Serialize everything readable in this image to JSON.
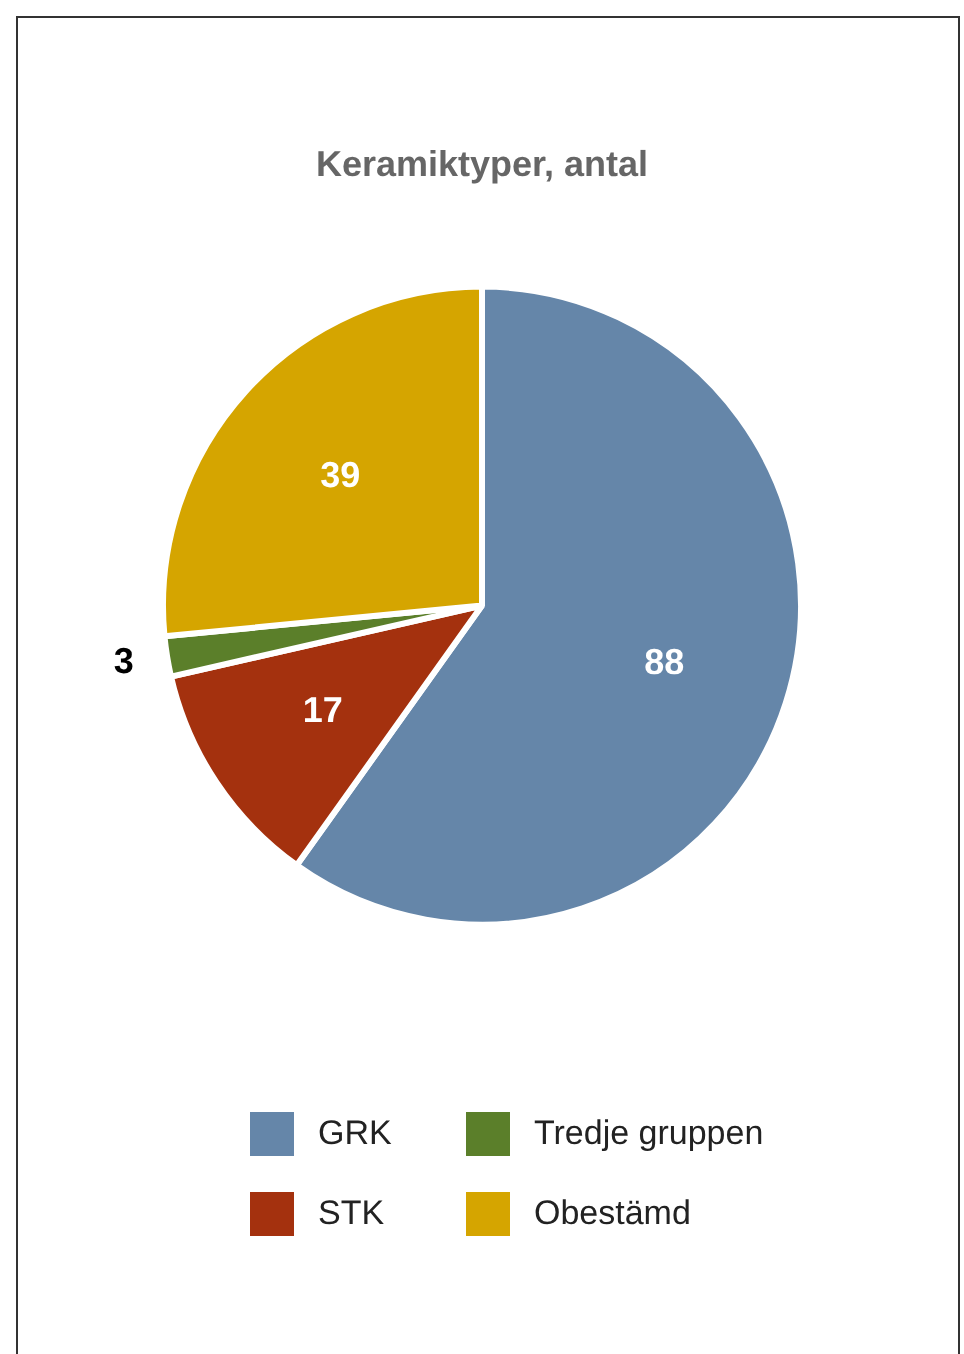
{
  "chart_data": {
    "type": "pie",
    "title": "Keramiktyper, antal",
    "categories": [
      "GRK",
      "STK",
      "Tredje gruppen",
      "Obestämd"
    ],
    "values": [
      88,
      17,
      3,
      39
    ],
    "colors": [
      "#6586a9",
      "#a4310e",
      "#5b7f2a",
      "#d5a500"
    ],
    "data_labels": true,
    "legend": "bottom"
  }
}
